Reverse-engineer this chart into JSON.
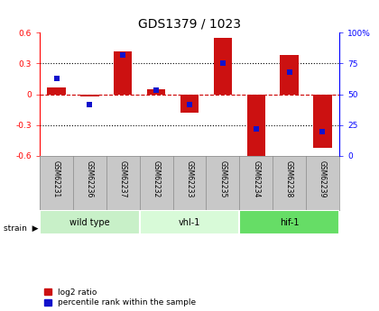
{
  "title": "GDS1379 / 1023",
  "samples": [
    "GSM62231",
    "GSM62236",
    "GSM62237",
    "GSM62232",
    "GSM62233",
    "GSM62235",
    "GSM62234",
    "GSM62238",
    "GSM62239"
  ],
  "log2_ratio": [
    0.07,
    -0.02,
    0.42,
    0.05,
    -0.18,
    0.55,
    -0.62,
    0.38,
    -0.52
  ],
  "percentile": [
    63,
    42,
    82,
    53,
    42,
    75,
    22,
    68,
    20
  ],
  "groups": [
    {
      "label": "wild type",
      "indices": [
        0,
        1,
        2
      ],
      "color": "#c8f0c8"
    },
    {
      "label": "vhl-1",
      "indices": [
        3,
        4,
        5
      ],
      "color": "#d8fad8"
    },
    {
      "label": "hif-1",
      "indices": [
        6,
        7,
        8
      ],
      "color": "#66dd66"
    }
  ],
  "ylim": [
    -0.6,
    0.6
  ],
  "yticks": [
    -0.6,
    -0.3,
    0.0,
    0.3,
    0.6
  ],
  "right_yticks": [
    0,
    25,
    50,
    75,
    100
  ],
  "bar_color": "#cc1111",
  "dot_color": "#1111cc",
  "zero_line_color": "#cc0000",
  "grid_color": "#000000",
  "sample_bg": "#c8c8c8",
  "background_color": "#ffffff",
  "title_fontsize": 10,
  "tick_fontsize": 6.5,
  "sample_fontsize": 5.5,
  "group_fontsize": 7,
  "bar_width": 0.55,
  "legend_bar_color": "#cc1111",
  "legend_dot_color": "#1111cc"
}
